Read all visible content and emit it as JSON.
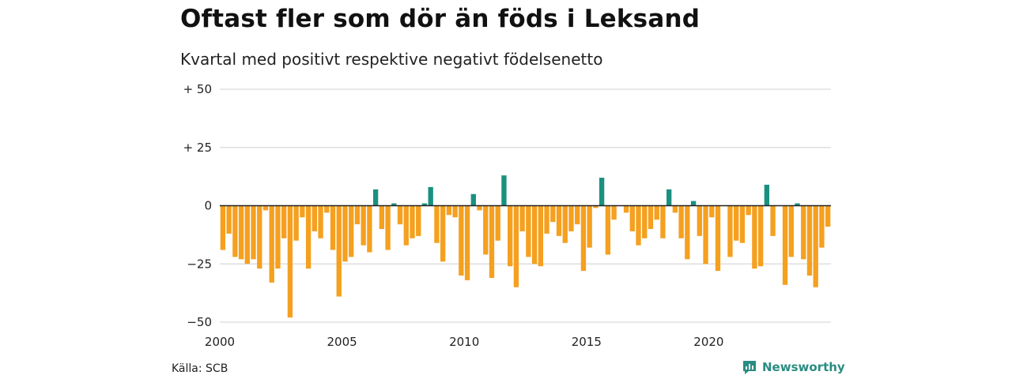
{
  "header": {
    "title": "Oftast fler som dör än föds i Leksand",
    "subtitle": "Kvartal med positivt respektive negativt födelsenetto"
  },
  "footer": {
    "source": "Källa: SCB",
    "brand": "Newsworthy",
    "brand_icon": "newsworthy-logo-icon"
  },
  "colors": {
    "positive": "#1a9080",
    "negative": "#f5a01f",
    "grid": "#d9d9d9",
    "axis": "#222222"
  },
  "chart_data": {
    "type": "bar",
    "title": "Oftast fler som dör än föds i Leksand",
    "subtitle": "Kvartal med positivt respektive negativt födelsenetto",
    "xlabel": "",
    "ylabel": "",
    "ylim": [
      -50,
      50
    ],
    "xlim": [
      2000,
      2025
    ],
    "y_ticks": [
      50,
      25,
      0,
      -25,
      -50
    ],
    "y_tick_labels": [
      "+ 50",
      "+ 25",
      "0",
      "−25",
      "−50"
    ],
    "x_ticks": [
      2000,
      2005,
      2010,
      2015,
      2020
    ],
    "x_tick_labels": [
      "2000",
      "2005",
      "2010",
      "2015",
      "2020"
    ],
    "grid": true,
    "start": "2000 Q1",
    "frequency": "quarter",
    "values": [
      -19,
      -12,
      -22,
      -23,
      -25,
      -23,
      -27,
      -2,
      -33,
      -27,
      -14,
      -48,
      -15,
      -5,
      -27,
      -11,
      -14,
      -3,
      -19,
      -39,
      -24,
      -22,
      -8,
      -17,
      -20,
      7,
      -10,
      -19,
      1,
      -8,
      -17,
      -14,
      -13,
      1,
      8,
      -16,
      -24,
      -4,
      -5,
      -30,
      -32,
      5,
      -2,
      -21,
      -31,
      -15,
      13,
      -26,
      -35,
      -11,
      -22,
      -25,
      -26,
      -12,
      -7,
      -13,
      -16,
      -11,
      -8,
      -28,
      -18,
      -1,
      12,
      -21,
      -6,
      0,
      -3,
      -11,
      -17,
      -14,
      -10,
      -6,
      -14,
      7,
      -3,
      -14,
      -23,
      2,
      -13,
      -25,
      -5,
      -28,
      0,
      -22,
      -15,
      -16,
      -4,
      -27,
      -26,
      9,
      -13,
      0,
      -34,
      -22,
      1,
      -23,
      -30,
      -35,
      -18,
      -9
    ]
  }
}
